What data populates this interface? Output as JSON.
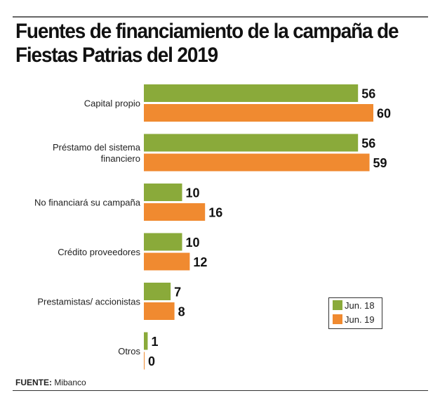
{
  "title": "Fuentes de financiamiento de la campaña de Fiestas Patrias del 2019",
  "source_label": "FUENTE:",
  "source_value": "Mibanco",
  "chart_data": {
    "type": "bar",
    "orientation": "horizontal",
    "title": "Fuentes de financiamiento de la campaña de Fiestas Patrias del 2019",
    "categories": [
      [
        "Capital propio"
      ],
      [
        "Préstamo del sistema",
        "financiero"
      ],
      [
        "No financiará su campaña"
      ],
      [
        "Crédito proveedores"
      ],
      [
        "Prestamistas/ accionistas"
      ],
      [
        "Otros"
      ]
    ],
    "series": [
      {
        "name": "Jun. 18",
        "color": "#8aaa3a",
        "values": [
          56,
          56,
          10,
          10,
          7,
          1
        ]
      },
      {
        "name": "Jun. 19",
        "color": "#f08a30",
        "values": [
          60,
          59,
          16,
          12,
          8,
          0
        ]
      }
    ],
    "xlim": [
      0,
      60
    ],
    "grid": false,
    "legend_position": "bottom-right",
    "data_labels": true
  }
}
